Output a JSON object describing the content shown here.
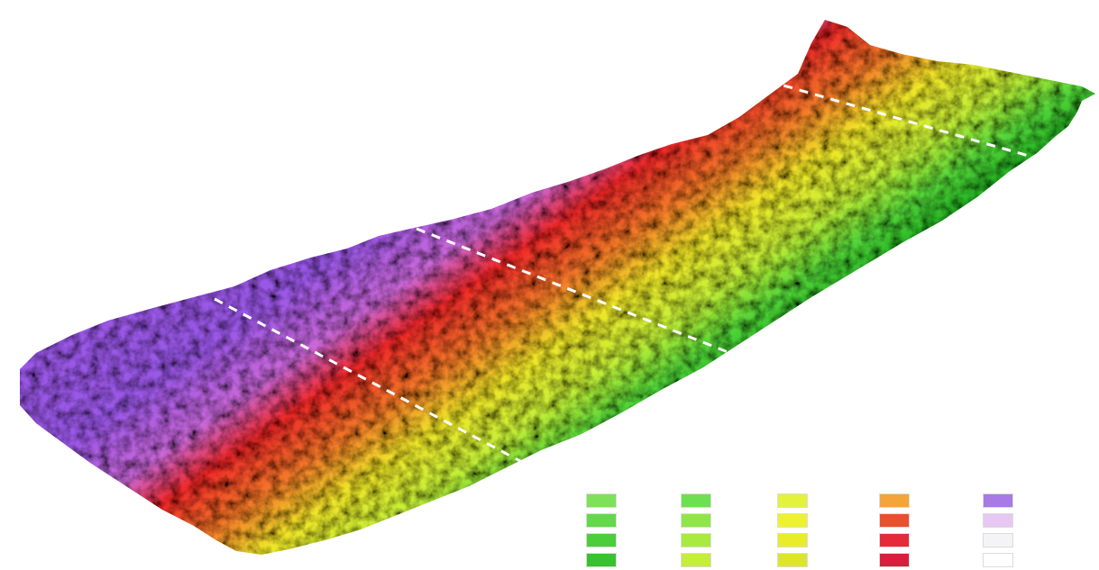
{
  "legend": [
    {
      "title": "",
      "entries": [
        {
          "label": "",
          "color": "#7fe05a"
        },
        {
          "label": "",
          "color": "#63d84a"
        },
        {
          "label": "",
          "color": "#4ccd3c"
        },
        {
          "label": "",
          "color": "#38c230"
        }
      ]
    },
    {
      "title": "",
      "entries": [
        {
          "label": "",
          "color": "#6ee050"
        },
        {
          "label": "",
          "color": "#8fe64a"
        },
        {
          "label": "",
          "color": "#a8ea40"
        },
        {
          "label": "",
          "color": "#c4ee38"
        }
      ]
    },
    {
      "title": "",
      "entries": [
        {
          "label": "",
          "color": "#e3f23a"
        },
        {
          "label": "",
          "color": "#eef22e"
        },
        {
          "label": "",
          "color": "#e8ec2a"
        },
        {
          "label": "",
          "color": "#dde626"
        }
      ]
    },
    {
      "title": "",
      "entries": [
        {
          "label": "",
          "color": "#f3a43a"
        },
        {
          "label": "",
          "color": "#e8502e"
        },
        {
          "label": "",
          "color": "#e52a3a"
        },
        {
          "label": "",
          "color": "#d81e3c"
        }
      ]
    },
    {
      "title": "",
      "entries": [
        {
          "label": "",
          "color": "#a77ae6"
        },
        {
          "label": "",
          "color": "#e6c8f2"
        },
        {
          "label": "",
          "color": "#f4f4f6"
        },
        {
          "label": "",
          "color": "#ffffff"
        }
      ]
    }
  ]
}
